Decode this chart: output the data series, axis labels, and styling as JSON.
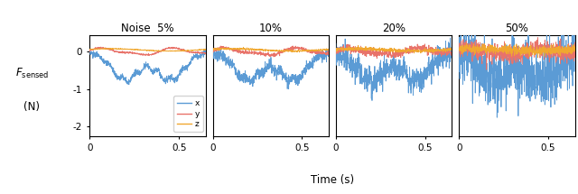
{
  "noise_levels": [
    "5%",
    "10%",
    "20%",
    "50%"
  ],
  "noise_title": "Noise",
  "xlabel": "Time (s)",
  "ylim": [
    -2.25,
    0.45
  ],
  "xlim": [
    0,
    0.65
  ],
  "yticks": [
    0,
    -1,
    -2
  ],
  "xtick_vals": [
    0,
    0.5
  ],
  "xtick_labels": [
    "0",
    "0.5"
  ],
  "color_x": "#5B9BD5",
  "color_y": "#E8736A",
  "color_z": "#F0A830",
  "n_points": 700,
  "t_max": 0.65,
  "seed": 0
}
